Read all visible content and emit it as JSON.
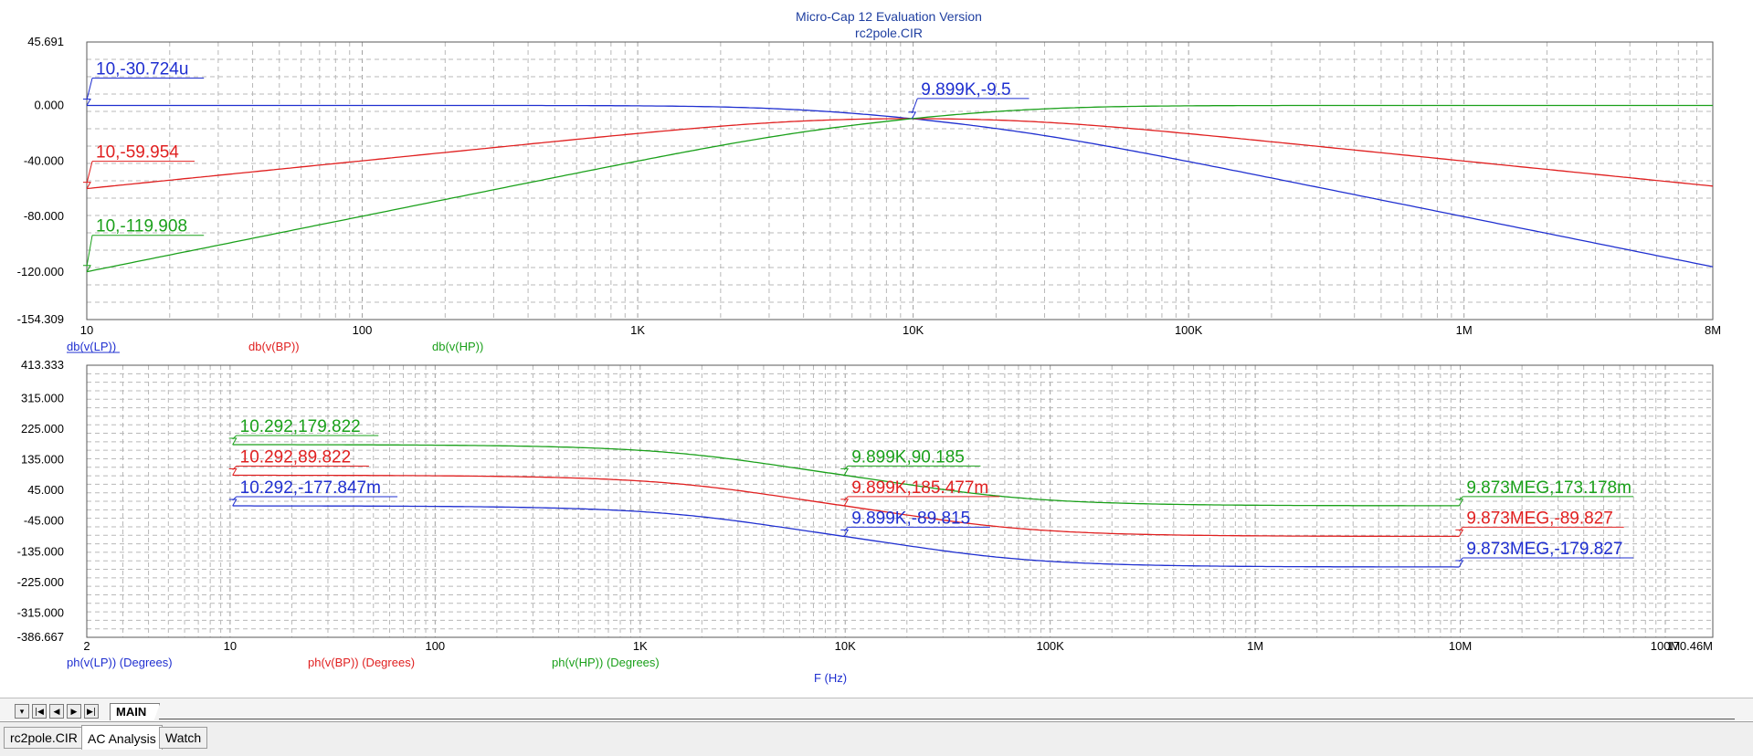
{
  "window": {
    "title": "Micro-Cap 12 Evaluation Version",
    "subtitle": "rc2pole.CIR"
  },
  "chart_data": [
    {
      "type": "line",
      "x_scale": "log",
      "xlim": [
        10,
        8000000
      ],
      "ylim": [
        -154.309,
        45.691
      ],
      "x_tick_labels": [
        {
          "v": 10,
          "label": "10"
        },
        {
          "v": 100,
          "label": "100"
        },
        {
          "v": 1000,
          "label": "1K"
        },
        {
          "v": 10000,
          "label": "10K"
        },
        {
          "v": 100000,
          "label": "100K"
        },
        {
          "v": 1000000,
          "label": "1M"
        },
        {
          "v": 8000000,
          "label": "8M"
        }
      ],
      "y_tick_labels": [
        {
          "v": 45.691,
          "label": "45.691"
        },
        {
          "v": 0,
          "label": "0.000"
        },
        {
          "v": -40,
          "label": "-40.000"
        },
        {
          "v": -80,
          "label": "-80.000"
        },
        {
          "v": -120,
          "label": "-120.000"
        },
        {
          "v": -154.309,
          "label": "-154.309"
        }
      ],
      "legend": [
        {
          "label": "db(v(LP))",
          "color": "#1f2fd0"
        },
        {
          "label": "db(v(BP))",
          "color": "#e02020"
        },
        {
          "label": "db(v(HP))",
          "color": "#1aa01a"
        }
      ],
      "series": [
        {
          "name": "db(v(LP))",
          "color": "#1f2fd0",
          "kind": "lp"
        },
        {
          "name": "db(v(BP))",
          "color": "#e02020",
          "kind": "bp"
        },
        {
          "name": "db(v(HP))",
          "color": "#1aa01a",
          "kind": "hp"
        }
      ],
      "annotations": [
        {
          "x": 10,
          "y": -3.0724e-05,
          "label": "10,-30.724u",
          "color": "#1f2fd0"
        },
        {
          "x": 10,
          "y": -59.954,
          "label": "10,-59.954",
          "color": "#e02020"
        },
        {
          "x": 10,
          "y": -119.908,
          "label": "10,-119.908",
          "color": "#1aa01a"
        },
        {
          "x": 9899,
          "y": -9.5,
          "label": "9.899K,-9.5",
          "color": "#1f2fd0"
        }
      ]
    },
    {
      "type": "line",
      "x_scale": "log",
      "xlim": [
        2,
        170460000
      ],
      "ylim": [
        -386.667,
        413.333
      ],
      "x_tick_labels": [
        {
          "v": 2,
          "label": "2"
        },
        {
          "v": 10,
          "label": "10"
        },
        {
          "v": 100,
          "label": "100"
        },
        {
          "v": 1000,
          "label": "1K"
        },
        {
          "v": 10000,
          "label": "10K"
        },
        {
          "v": 100000,
          "label": "100K"
        },
        {
          "v": 1000000,
          "label": "1M"
        },
        {
          "v": 10000000,
          "label": "10M"
        },
        {
          "v": 100000000,
          "label": "100M"
        },
        {
          "v": 170460000,
          "label": "170.46M"
        }
      ],
      "y_tick_labels": [
        {
          "v": 413.333,
          "label": "413.333"
        },
        {
          "v": 315,
          "label": "315.000"
        },
        {
          "v": 225,
          "label": "225.000"
        },
        {
          "v": 135,
          "label": "135.000"
        },
        {
          "v": 45,
          "label": "45.000"
        },
        {
          "v": -45,
          "label": "-45.000"
        },
        {
          "v": -135,
          "label": "-135.000"
        },
        {
          "v": -225,
          "label": "-225.000"
        },
        {
          "v": -315,
          "label": "-315.000"
        },
        {
          "v": -386.667,
          "label": "-386.667"
        }
      ],
      "xlabel": "F (Hz)",
      "legend": [
        {
          "label": "ph(v(LP)) (Degrees)",
          "color": "#1f2fd0"
        },
        {
          "label": "ph(v(BP)) (Degrees)",
          "color": "#e02020"
        },
        {
          "label": "ph(v(HP)) (Degrees)",
          "color": "#1aa01a"
        }
      ],
      "series": [
        {
          "name": "ph(v(LP)) (Degrees)",
          "color": "#1f2fd0",
          "kind": "lp",
          "x_range": [
            10.292,
            9873000
          ]
        },
        {
          "name": "ph(v(BP)) (Degrees)",
          "color": "#e02020",
          "kind": "bp",
          "x_range": [
            10.292,
            9873000
          ]
        },
        {
          "name": "ph(v(HP)) (Degrees)",
          "color": "#1aa01a",
          "kind": "hp",
          "x_range": [
            10.292,
            9873000
          ]
        }
      ],
      "annotations": [
        {
          "x": 10.292,
          "y": 179.822,
          "label": "10.292,179.822",
          "color": "#1aa01a"
        },
        {
          "x": 10.292,
          "y": 89.822,
          "label": "10.292,89.822",
          "color": "#e02020"
        },
        {
          "x": 10.292,
          "y": -0.177847,
          "label": "10.292,-177.847m",
          "color": "#1f2fd0"
        },
        {
          "x": 9899,
          "y": 90.185,
          "label": "9.899K,90.185",
          "color": "#1aa01a"
        },
        {
          "x": 9899,
          "y": 0.185477,
          "label": "9.899K,185.477m",
          "color": "#e02020"
        },
        {
          "x": 9899,
          "y": -89.815,
          "label": "9.899K,-89.815",
          "color": "#1f2fd0"
        },
        {
          "x": 9873000,
          "y": 0.173178,
          "label": "9.873MEG,173.178m",
          "color": "#1aa01a"
        },
        {
          "x": 9873000,
          "y": -89.827,
          "label": "9.873MEG,-89.827",
          "color": "#e02020"
        },
        {
          "x": 9873000,
          "y": -179.827,
          "label": "9.873MEG,-179.827",
          "color": "#1f2fd0"
        }
      ]
    }
  ],
  "sheet_tabs": {
    "nav_icons": [
      "dropdown-arrow-icon",
      "first-page-icon",
      "prev-page-icon",
      "next-page-icon",
      "last-page-icon"
    ],
    "active": "MAIN"
  },
  "bottom_tabs": [
    "rc2pole.CIR",
    "AC Analysis",
    "Watch"
  ]
}
